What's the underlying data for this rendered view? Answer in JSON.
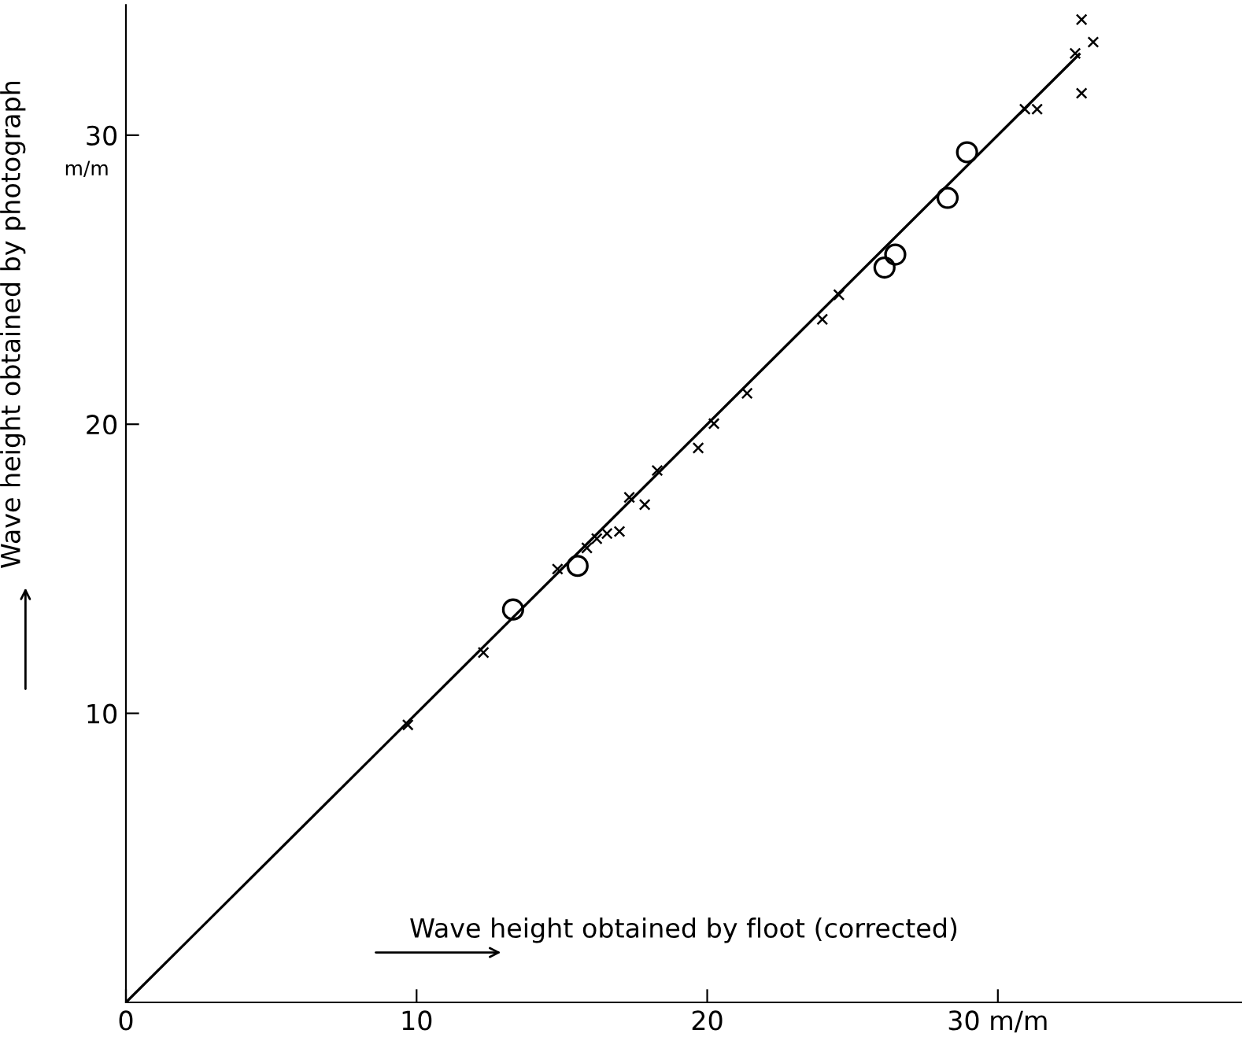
{
  "chart_data": {
    "type": "scatter",
    "xlabel": "Wave height obtained by floot (corrected)",
    "ylabel": "Wave height obtained by photograph",
    "xlim": [
      0,
      38.4
    ],
    "ylim": [
      0,
      34.5
    ],
    "xticks": [
      0,
      10,
      20,
      {
        "value": 30,
        "label": "30 m/m"
      }
    ],
    "yticks": [
      10,
      20,
      30
    ],
    "annotations": [
      "m/m"
    ],
    "grid": false,
    "legend": false,
    "series": [
      {
        "marker": "cross",
        "color": "#000000",
        "x": [
          9.7,
          12.3,
          14.85,
          15.86,
          16.2,
          16.55,
          16.98,
          17.32,
          17.85,
          18.28,
          19.69,
          20.23,
          21.37,
          23.96,
          24.53,
          30.93,
          31.35,
          32.66,
          33.28,
          32.88,
          32.88
        ],
        "values": [
          9.6,
          12.1,
          14.99,
          15.72,
          16.04,
          16.22,
          16.29,
          17.47,
          17.22,
          18.4,
          19.18,
          20.02,
          21.07,
          23.63,
          24.48,
          30.9,
          30.9,
          32.83,
          33.22,
          34.0,
          31.45
        ]
      },
      {
        "marker": "circle",
        "color": "#000000",
        "x": [
          13.32,
          15.54,
          26.1,
          26.47,
          28.27,
          28.94
        ],
        "values": [
          13.59,
          15.1,
          25.42,
          25.87,
          27.83,
          29.41
        ]
      },
      {
        "type": "line",
        "marker": "none",
        "line_style": "solid",
        "color": "#000000",
        "x": [
          0,
          32.8
        ],
        "values": [
          0,
          32.8
        ]
      }
    ]
  }
}
